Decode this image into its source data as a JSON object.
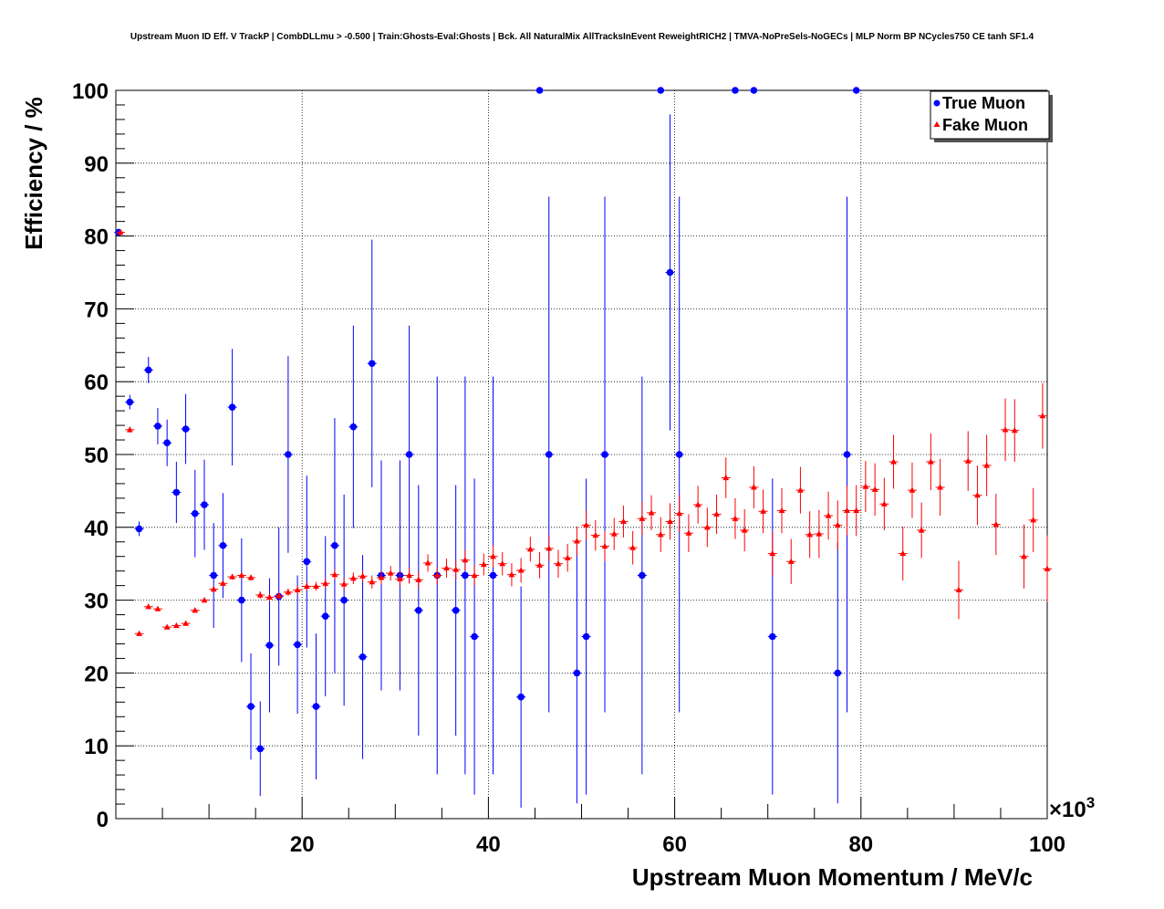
{
  "chart_data": {
    "type": "scatter",
    "title": "Upstream Muon ID Eff. V TrackP | CombDLLmu > -0.500 | Train:Ghosts-Eval:Ghosts | Bck. All NaturalMix AllTracksInEvent ReweightRICH2 | TMVA-NoPreSels-NoGECs | MLP Norm BP NCycles750 CE tanh SF1.4",
    "xlabel": "Upstream Muon Momentum / MeV/c",
    "ylabel": "Efficiency / %",
    "x_exponent_label": "×10",
    "x_exponent_power": "3",
    "xlim": [
      0,
      100
    ],
    "ylim": [
      0,
      100
    ],
    "x_ticks": [
      "20",
      "40",
      "60",
      "80",
      "100"
    ],
    "y_ticks": [
      "0",
      "10",
      "20",
      "30",
      "40",
      "50",
      "60",
      "70",
      "80",
      "90",
      "100"
    ],
    "grid": true,
    "legend_position": "top-right",
    "series": [
      {
        "name": "True Muon",
        "color": "#0000ff",
        "marker": "circle",
        "points": [
          {
            "x": 0.3,
            "y": 80.5,
            "err": 0.5
          },
          {
            "x": 1.5,
            "y": 57.2,
            "err": 1.0
          },
          {
            "x": 2.5,
            "y": 39.8,
            "err": 1.0
          },
          {
            "x": 3.5,
            "y": 61.6,
            "err": 1.8
          },
          {
            "x": 4.5,
            "y": 53.9,
            "err": 2.5
          },
          {
            "x": 5.5,
            "y": 51.6,
            "err": 3.2
          },
          {
            "x": 6.5,
            "y": 44.8,
            "err": 4.2
          },
          {
            "x": 7.5,
            "y": 53.5,
            "err": 4.8
          },
          {
            "x": 8.5,
            "y": 41.9,
            "err": 6.0
          },
          {
            "x": 9.5,
            "y": 43.1,
            "err": 6.2
          },
          {
            "x": 10.5,
            "y": 33.4,
            "err": 7.2
          },
          {
            "x": 11.5,
            "y": 37.5,
            "err": 7.2
          },
          {
            "x": 12.5,
            "y": 56.5,
            "err": 8.0
          },
          {
            "x": 13.5,
            "y": 30.0,
            "err": 8.5
          },
          {
            "x": 14.5,
            "y": 15.4,
            "err": 7.3
          },
          {
            "x": 15.5,
            "y": 9.6,
            "err": 6.5
          },
          {
            "x": 16.5,
            "y": 23.8,
            "err": 9.2
          },
          {
            "x": 17.5,
            "y": 30.5,
            "err": 9.5
          },
          {
            "x": 18.5,
            "y": 50.0,
            "err": 13.5
          },
          {
            "x": 19.5,
            "y": 23.9,
            "err": 9.5
          },
          {
            "x": 20.5,
            "y": 35.3,
            "err": 11.8
          },
          {
            "x": 21.5,
            "y": 15.4,
            "err": 10.0
          },
          {
            "x": 22.5,
            "y": 27.8,
            "err": 11.0
          },
          {
            "x": 23.5,
            "y": 37.5,
            "err": 17.5
          },
          {
            "x": 24.5,
            "y": 30.0,
            "err": 14.5
          },
          {
            "x": 25.5,
            "y": 53.8,
            "err": 13.9
          },
          {
            "x": 26.5,
            "y": 22.2,
            "err": 14.0
          },
          {
            "x": 27.5,
            "y": 62.5,
            "err": 17.0
          },
          {
            "x": 28.5,
            "y": 33.4,
            "err": 15.8
          },
          {
            "x": 30.5,
            "y": 33.4,
            "err": 15.8
          },
          {
            "x": 31.5,
            "y": 50.0,
            "err": 17.7
          },
          {
            "x": 32.5,
            "y": 28.6,
            "err": 17.2
          },
          {
            "x": 34.5,
            "y": 33.4,
            "err": 27.3
          },
          {
            "x": 36.5,
            "y": 28.6,
            "err": 17.2
          },
          {
            "x": 37.5,
            "y": 33.4,
            "err": 27.3
          },
          {
            "x": 38.5,
            "y": 25.0,
            "err": 21.7
          },
          {
            "x": 40.5,
            "y": 33.4,
            "err": 27.3
          },
          {
            "x": 43.5,
            "y": 16.7,
            "err": 15.2
          },
          {
            "x": 45.5,
            "y": 100.0,
            "err": 0
          },
          {
            "x": 46.5,
            "y": 50.0,
            "err": 35.4
          },
          {
            "x": 49.5,
            "y": 20.0,
            "err": 17.9
          },
          {
            "x": 50.5,
            "y": 25.0,
            "err": 21.7
          },
          {
            "x": 52.5,
            "y": 50.0,
            "err": 35.4
          },
          {
            "x": 56.5,
            "y": 33.4,
            "err": 27.3
          },
          {
            "x": 58.5,
            "y": 100.0,
            "err": 0
          },
          {
            "x": 59.5,
            "y": 75.0,
            "err": 21.7
          },
          {
            "x": 60.5,
            "y": 50.0,
            "err": 35.4
          },
          {
            "x": 66.5,
            "y": 100.0,
            "err": 0
          },
          {
            "x": 68.5,
            "y": 100.0,
            "err": 0
          },
          {
            "x": 70.5,
            "y": 25.0,
            "err": 21.7
          },
          {
            "x": 77.5,
            "y": 20.0,
            "err": 17.9
          },
          {
            "x": 78.5,
            "y": 50.0,
            "err": 35.4
          },
          {
            "x": 79.5,
            "y": 100.0,
            "err": 0
          }
        ]
      },
      {
        "name": "Fake Muon",
        "color": "#ff0000",
        "marker": "triangle",
        "points": [
          {
            "x": 0.5,
            "y": 80.5,
            "err": 0.4
          },
          {
            "x": 1.5,
            "y": 53.4,
            "err": 0.4
          },
          {
            "x": 2.5,
            "y": 25.4,
            "err": 0.3
          },
          {
            "x": 3.5,
            "y": 29.1,
            "err": 0.3
          },
          {
            "x": 4.5,
            "y": 28.8,
            "err": 0.3
          },
          {
            "x": 5.5,
            "y": 26.3,
            "err": 0.3
          },
          {
            "x": 6.5,
            "y": 26.5,
            "err": 0.3
          },
          {
            "x": 7.5,
            "y": 26.8,
            "err": 0.3
          },
          {
            "x": 8.5,
            "y": 28.6,
            "err": 0.3
          },
          {
            "x": 9.5,
            "y": 30.0,
            "err": 0.3
          },
          {
            "x": 10.5,
            "y": 31.5,
            "err": 0.4
          },
          {
            "x": 11.5,
            "y": 32.3,
            "err": 0.4
          },
          {
            "x": 12.5,
            "y": 33.2,
            "err": 0.4
          },
          {
            "x": 13.5,
            "y": 33.4,
            "err": 0.4
          },
          {
            "x": 14.5,
            "y": 33.1,
            "err": 0.4
          },
          {
            "x": 15.5,
            "y": 30.7,
            "err": 0.5
          },
          {
            "x": 16.5,
            "y": 30.4,
            "err": 0.5
          },
          {
            "x": 17.5,
            "y": 30.6,
            "err": 0.5
          },
          {
            "x": 18.5,
            "y": 31.1,
            "err": 0.5
          },
          {
            "x": 19.5,
            "y": 31.4,
            "err": 0.6
          },
          {
            "x": 20.5,
            "y": 31.9,
            "err": 0.6
          },
          {
            "x": 21.5,
            "y": 31.9,
            "err": 0.6
          },
          {
            "x": 22.5,
            "y": 32.3,
            "err": 0.7
          },
          {
            "x": 23.5,
            "y": 33.5,
            "err": 0.7
          },
          {
            "x": 24.5,
            "y": 32.2,
            "err": 0.8
          },
          {
            "x": 25.5,
            "y": 33.0,
            "err": 0.8
          },
          {
            "x": 26.5,
            "y": 33.3,
            "err": 0.8
          },
          {
            "x": 27.5,
            "y": 32.5,
            "err": 0.9
          },
          {
            "x": 28.5,
            "y": 33.1,
            "err": 0.9
          },
          {
            "x": 29.5,
            "y": 33.7,
            "err": 1.0
          },
          {
            "x": 30.5,
            "y": 32.9,
            "err": 1.0
          },
          {
            "x": 31.5,
            "y": 33.4,
            "err": 1.1
          },
          {
            "x": 32.5,
            "y": 32.8,
            "err": 1.1
          },
          {
            "x": 33.5,
            "y": 35.1,
            "err": 1.2
          },
          {
            "x": 34.5,
            "y": 33.4,
            "err": 1.2
          },
          {
            "x": 35.5,
            "y": 34.4,
            "err": 1.3
          },
          {
            "x": 36.5,
            "y": 34.2,
            "err": 1.3
          },
          {
            "x": 37.5,
            "y": 35.5,
            "err": 1.4
          },
          {
            "x": 38.5,
            "y": 33.4,
            "err": 1.4
          },
          {
            "x": 39.5,
            "y": 34.9,
            "err": 1.5
          },
          {
            "x": 40.5,
            "y": 36.0,
            "err": 1.5
          },
          {
            "x": 41.5,
            "y": 35.0,
            "err": 1.6
          },
          {
            "x": 42.5,
            "y": 33.5,
            "err": 1.6
          },
          {
            "x": 43.5,
            "y": 34.1,
            "err": 1.7
          },
          {
            "x": 44.5,
            "y": 37.0,
            "err": 1.7
          },
          {
            "x": 45.5,
            "y": 34.8,
            "err": 1.8
          },
          {
            "x": 46.5,
            "y": 37.1,
            "err": 1.8
          },
          {
            "x": 47.5,
            "y": 35.0,
            "err": 1.9
          },
          {
            "x": 48.5,
            "y": 35.8,
            "err": 1.9
          },
          {
            "x": 49.5,
            "y": 38.1,
            "err": 2.0
          },
          {
            "x": 50.5,
            "y": 40.3,
            "err": 2.0
          },
          {
            "x": 51.5,
            "y": 38.9,
            "err": 2.1
          },
          {
            "x": 52.5,
            "y": 37.4,
            "err": 2.1
          },
          {
            "x": 53.5,
            "y": 39.1,
            "err": 2.2
          },
          {
            "x": 54.5,
            "y": 40.8,
            "err": 2.2
          },
          {
            "x": 55.5,
            "y": 37.2,
            "err": 2.3
          },
          {
            "x": 56.5,
            "y": 41.2,
            "err": 2.3
          },
          {
            "x": 57.5,
            "y": 42.0,
            "err": 2.4
          },
          {
            "x": 58.5,
            "y": 39.0,
            "err": 2.4
          },
          {
            "x": 59.5,
            "y": 40.8,
            "err": 2.5
          },
          {
            "x": 60.5,
            "y": 41.9,
            "err": 2.5
          },
          {
            "x": 61.5,
            "y": 39.2,
            "err": 2.6
          },
          {
            "x": 62.5,
            "y": 43.1,
            "err": 2.6
          },
          {
            "x": 63.5,
            "y": 40.0,
            "err": 2.7
          },
          {
            "x": 64.5,
            "y": 41.8,
            "err": 2.7
          },
          {
            "x": 65.5,
            "y": 46.8,
            "err": 2.8
          },
          {
            "x": 66.5,
            "y": 41.2,
            "err": 2.8
          },
          {
            "x": 67.5,
            "y": 39.6,
            "err": 2.9
          },
          {
            "x": 68.5,
            "y": 45.5,
            "err": 2.9
          },
          {
            "x": 69.5,
            "y": 42.2,
            "err": 3.0
          },
          {
            "x": 70.5,
            "y": 36.4,
            "err": 3.0
          },
          {
            "x": 71.5,
            "y": 42.3,
            "err": 3.1
          },
          {
            "x": 72.5,
            "y": 35.3,
            "err": 3.1
          },
          {
            "x": 73.5,
            "y": 45.1,
            "err": 3.2
          },
          {
            "x": 74.5,
            "y": 39.0,
            "err": 3.2
          },
          {
            "x": 75.5,
            "y": 39.1,
            "err": 3.3
          },
          {
            "x": 76.5,
            "y": 41.6,
            "err": 3.3
          },
          {
            "x": 77.5,
            "y": 40.3,
            "err": 3.4
          },
          {
            "x": 78.5,
            "y": 42.3,
            "err": 3.4
          },
          {
            "x": 79.5,
            "y": 42.3,
            "err": 3.5
          },
          {
            "x": 80.5,
            "y": 45.6,
            "err": 3.5
          },
          {
            "x": 81.5,
            "y": 45.2,
            "err": 3.6
          },
          {
            "x": 82.5,
            "y": 43.2,
            "err": 3.6
          },
          {
            "x": 83.5,
            "y": 49.0,
            "err": 3.7
          },
          {
            "x": 84.5,
            "y": 36.4,
            "err": 3.7
          },
          {
            "x": 85.5,
            "y": 45.1,
            "err": 3.8
          },
          {
            "x": 86.5,
            "y": 39.6,
            "err": 3.8
          },
          {
            "x": 87.5,
            "y": 49.0,
            "err": 3.9
          },
          {
            "x": 88.5,
            "y": 45.5,
            "err": 3.9
          },
          {
            "x": 90.5,
            "y": 31.4,
            "err": 4.0
          },
          {
            "x": 91.5,
            "y": 49.1,
            "err": 4.1
          },
          {
            "x": 92.5,
            "y": 44.4,
            "err": 4.1
          },
          {
            "x": 93.5,
            "y": 48.5,
            "err": 4.2
          },
          {
            "x": 94.5,
            "y": 40.4,
            "err": 4.2
          },
          {
            "x": 95.5,
            "y": 53.4,
            "err": 4.3
          },
          {
            "x": 96.5,
            "y": 53.3,
            "err": 4.3
          },
          {
            "x": 97.5,
            "y": 36.0,
            "err": 4.4
          },
          {
            "x": 98.5,
            "y": 41.0,
            "err": 4.4
          },
          {
            "x": 99.5,
            "y": 55.3,
            "err": 4.5
          },
          {
            "x": 100.0,
            "y": 34.3,
            "err": 4.6
          }
        ]
      }
    ]
  }
}
